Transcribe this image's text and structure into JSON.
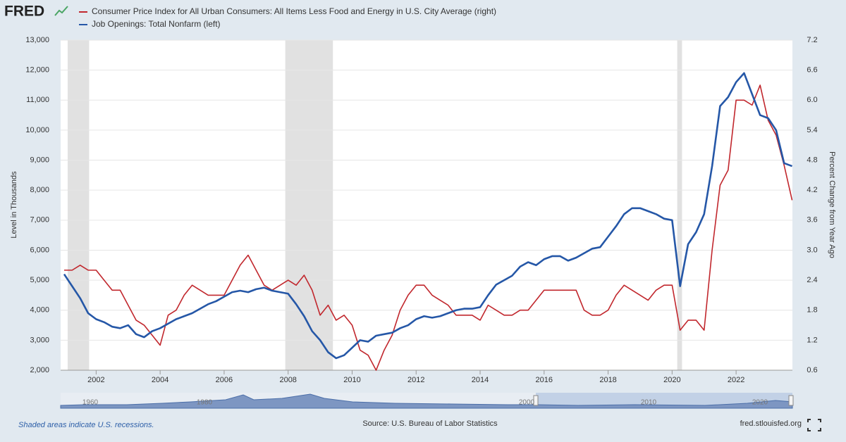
{
  "logo": "FRED",
  "chart_data": {
    "type": "line",
    "x": [
      2001.0,
      2001.25,
      2001.5,
      2001.75,
      2002.0,
      2002.25,
      2002.5,
      2002.75,
      2003.0,
      2003.25,
      2003.5,
      2003.75,
      2004.0,
      2004.25,
      2004.5,
      2004.75,
      2005.0,
      2005.25,
      2005.5,
      2005.75,
      2006.0,
      2006.25,
      2006.5,
      2006.75,
      2007.0,
      2007.25,
      2007.5,
      2007.75,
      2008.0,
      2008.25,
      2008.5,
      2008.75,
      2009.0,
      2009.25,
      2009.5,
      2009.75,
      2010.0,
      2010.25,
      2010.5,
      2010.75,
      2011.0,
      2011.25,
      2011.5,
      2011.75,
      2012.0,
      2012.25,
      2012.5,
      2012.75,
      2013.0,
      2013.25,
      2013.5,
      2013.75,
      2014.0,
      2014.25,
      2014.5,
      2014.75,
      2015.0,
      2015.25,
      2015.5,
      2015.75,
      2016.0,
      2016.25,
      2016.5,
      2016.75,
      2017.0,
      2017.25,
      2017.5,
      2017.75,
      2018.0,
      2018.25,
      2018.5,
      2018.75,
      2019.0,
      2019.25,
      2019.5,
      2019.75,
      2020.0,
      2020.25,
      2020.5,
      2020.75,
      2021.0,
      2021.25,
      2021.5,
      2021.75,
      2022.0,
      2022.25,
      2022.5,
      2022.75,
      2023.0,
      2023.25,
      2023.5,
      2023.75
    ],
    "series": [
      {
        "name": "Consumer Price Index for All Urban Consumers: All Items Less Food and Energy in U.S. City Average (right)",
        "color": "#c1272d",
        "axis": "y2",
        "values": [
          2.6,
          2.6,
          2.7,
          2.6,
          2.6,
          2.4,
          2.2,
          2.2,
          1.9,
          1.6,
          1.5,
          1.3,
          1.1,
          1.7,
          1.8,
          2.1,
          2.3,
          2.2,
          2.1,
          2.1,
          2.1,
          2.4,
          2.7,
          2.9,
          2.6,
          2.3,
          2.2,
          2.3,
          2.4,
          2.3,
          2.5,
          2.2,
          1.7,
          1.9,
          1.6,
          1.7,
          1.5,
          1.0,
          0.9,
          0.6,
          1.0,
          1.3,
          1.8,
          2.1,
          2.3,
          2.3,
          2.1,
          2.0,
          1.9,
          1.7,
          1.7,
          1.7,
          1.6,
          1.9,
          1.8,
          1.7,
          1.7,
          1.8,
          1.8,
          2.0,
          2.2,
          2.2,
          2.2,
          2.2,
          2.2,
          1.8,
          1.7,
          1.7,
          1.8,
          2.1,
          2.3,
          2.2,
          2.1,
          2.0,
          2.2,
          2.3,
          2.3,
          1.4,
          1.6,
          1.6,
          1.4,
          3.0,
          4.3,
          4.6,
          6.0,
          6.0,
          5.9,
          6.3,
          5.6,
          5.3,
          4.7,
          4.0
        ]
      },
      {
        "name": "Job Openings: Total Nonfarm (left)",
        "color": "#2557a7",
        "axis": "y",
        "values": [
          5200,
          4800,
          4400,
          3900,
          3700,
          3600,
          3450,
          3400,
          3500,
          3200,
          3100,
          3300,
          3400,
          3550,
          3700,
          3800,
          3900,
          4050,
          4200,
          4300,
          4450,
          4600,
          4650,
          4600,
          4700,
          4750,
          4650,
          4600,
          4550,
          4200,
          3800,
          3300,
          3000,
          2600,
          2400,
          2500,
          2750,
          3000,
          2950,
          3150,
          3200,
          3250,
          3400,
          3500,
          3700,
          3800,
          3750,
          3800,
          3900,
          4000,
          4050,
          4050,
          4100,
          4500,
          4850,
          5000,
          5150,
          5450,
          5600,
          5500,
          5700,
          5800,
          5800,
          5650,
          5750,
          5900,
          6050,
          6100,
          6450,
          6800,
          7200,
          7400,
          7400,
          7300,
          7200,
          7050,
          7000,
          4800,
          6200,
          6600,
          7200,
          8800,
          10800,
          11100,
          11600,
          11900,
          11200,
          10500,
          10400,
          10000,
          8900,
          8800
        ]
      }
    ],
    "xlim": [
      2000.89,
      2023.76
    ],
    "xticks": [
      2002,
      2004,
      2006,
      2008,
      2010,
      2012,
      2014,
      2016,
      2018,
      2020,
      2022
    ],
    "ylim": [
      2000,
      13000
    ],
    "yticks": [
      {
        "value": 2000,
        "label": "2,000"
      },
      {
        "value": 3000,
        "label": "3,000"
      },
      {
        "value": 4000,
        "label": "4,000"
      },
      {
        "value": 5000,
        "label": "5,000"
      },
      {
        "value": 6000,
        "label": "6,000"
      },
      {
        "value": 7000,
        "label": "7,000"
      },
      {
        "value": 8000,
        "label": "8,000"
      },
      {
        "value": 9000,
        "label": "9,000"
      },
      {
        "value": 10000,
        "label": "10,000"
      },
      {
        "value": 11000,
        "label": "11,000"
      },
      {
        "value": 12000,
        "label": "12,000"
      },
      {
        "value": 13000,
        "label": "13,000"
      }
    ],
    "y2lim": [
      0.6,
      7.2
    ],
    "y2ticks": [
      0.6,
      1.2,
      1.8,
      2.4,
      {
        "value": 3,
        "label": "3.0"
      },
      3.6,
      4.2,
      4.8,
      5.4,
      {
        "value": 6,
        "label": "6.0"
      },
      6.6,
      7.2
    ],
    "y_label": "Level in Thousands",
    "y2_label": "Percent Change from Year Ago",
    "recessions": [
      [
        2001.11,
        2001.78
      ],
      [
        2007.91,
        2009.4
      ],
      [
        2020.16,
        2020.31
      ]
    ],
    "recession_color": "#e1e1e1",
    "navigator_labels": [
      "1960",
      "1980",
      "2000",
      "2010",
      "2020"
    ],
    "note": "Shaded areas indicate U.S. recessions.",
    "source": "Source: U.S. Bureau of Labor Statistics",
    "url": "fred.stlouisfed.org"
  }
}
